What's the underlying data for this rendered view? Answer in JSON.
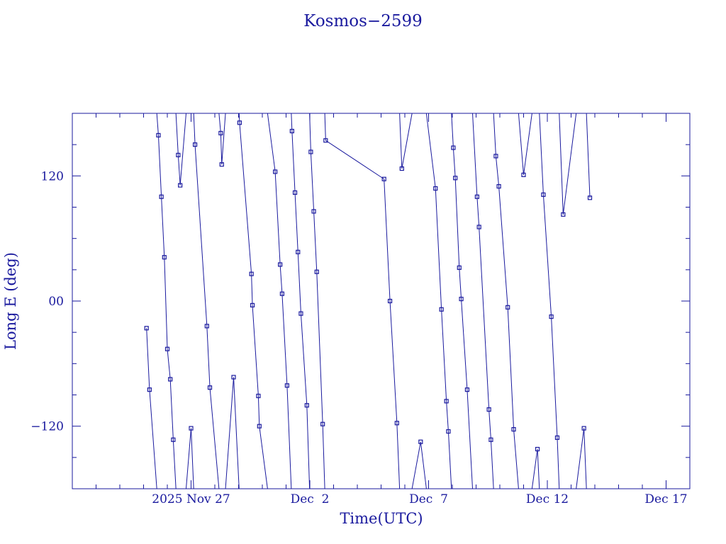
{
  "chart_data": {
    "type": "line",
    "title": "Kosmos−2599",
    "xlabel": "Time(UTC)",
    "ylabel": "Long E (deg)",
    "xlim": [
      "2025-11-22T00:00",
      "2025-12-18T00:00"
    ],
    "ylim": [
      -180,
      180
    ],
    "x_ticks": [
      {
        "x": "2025-11-27T00:00",
        "label": "2025 Nov 27"
      },
      {
        "x": "2025-12-02T00:00",
        "label": "Dec  2"
      },
      {
        "x": "2025-12-07T00:00",
        "label": "Dec  7"
      },
      {
        "x": "2025-12-12T00:00",
        "label": "Dec 12"
      },
      {
        "x": "2025-12-17T00:00",
        "label": "Dec 17"
      }
    ],
    "y_ticks": [
      {
        "y": 120,
        "label": "120"
      },
      {
        "y": 0,
        "label": "00"
      },
      {
        "y": -120,
        "label": "−120"
      }
    ],
    "grid": false,
    "color": "#1a1a9e",
    "series": [
      {
        "points": [
          [
            "2025-11-25T03:00",
            -26
          ],
          [
            "2025-11-25T06:00",
            -85
          ],
          [
            "2025-11-25T15:00",
            159
          ],
          [
            "2025-11-25T18:00",
            100
          ],
          [
            "2025-11-25T21:00",
            42
          ],
          [
            "2025-11-26T00:00",
            -46
          ],
          [
            "2025-11-26T03:00",
            -75
          ],
          [
            "2025-11-26T06:00",
            -133
          ],
          [
            "2025-11-26T11:00",
            140
          ],
          [
            "2025-11-26T13:00",
            111
          ],
          [
            "2025-11-27T00:00",
            -122
          ],
          [
            "2025-11-27T04:00",
            150
          ],
          [
            "2025-11-27T16:00",
            -24
          ],
          [
            "2025-11-27T19:00",
            -83
          ],
          [
            "2025-11-28T06:00",
            161
          ],
          [
            "2025-11-28T07:00",
            131
          ],
          [
            "2025-11-28T19:00",
            -73
          ],
          [
            "2025-11-29T01:00",
            171
          ],
          [
            "2025-11-29T13:00",
            26
          ],
          [
            "2025-11-29T14:00",
            -4
          ],
          [
            "2025-11-29T20:00",
            -91
          ],
          [
            "2025-11-29T21:00",
            -120
          ],
          [
            "2025-11-30T13:00",
            124
          ],
          [
            "2025-11-30T18:00",
            35
          ],
          [
            "2025-11-30T20:00",
            7
          ],
          [
            "2025-12-01T01:00",
            -81
          ],
          [
            "2025-12-01T06:00",
            163
          ],
          [
            "2025-12-01T09:00",
            104
          ],
          [
            "2025-12-01T12:00",
            47
          ],
          [
            "2025-12-01T15:00",
            -12
          ],
          [
            "2025-12-01T21:00",
            -100
          ],
          [
            "2025-12-02T01:00",
            143
          ],
          [
            "2025-12-02T04:00",
            86
          ],
          [
            "2025-12-02T07:00",
            28
          ],
          [
            "2025-12-02T13:00",
            -118
          ],
          [
            "2025-12-02T16:00",
            154
          ],
          [
            "2025-12-05T03:00",
            117
          ],
          [
            "2025-12-05T09:00",
            0
          ],
          [
            "2025-12-05T16:00",
            -117
          ],
          [
            "2025-12-05T21:00",
            127
          ],
          [
            "2025-12-06T16:00",
            -135
          ],
          [
            "2025-12-07T07:00",
            108
          ],
          [
            "2025-12-07T13:00",
            -8
          ],
          [
            "2025-12-07T18:00",
            -96
          ],
          [
            "2025-12-07T20:00",
            -125
          ],
          [
            "2025-12-08T01:00",
            147
          ],
          [
            "2025-12-08T03:00",
            118
          ],
          [
            "2025-12-08T07:00",
            32
          ],
          [
            "2025-12-08T09:00",
            2
          ],
          [
            "2025-12-08T15:00",
            -85
          ],
          [
            "2025-12-09T01:00",
            100
          ],
          [
            "2025-12-09T03:00",
            71
          ],
          [
            "2025-12-09T13:00",
            -104
          ],
          [
            "2025-12-09T15:00",
            -133
          ],
          [
            "2025-12-09T20:00",
            139
          ],
          [
            "2025-12-09T23:00",
            110
          ],
          [
            "2025-12-10T08:00",
            -6
          ],
          [
            "2025-12-10T14:00",
            -123
          ],
          [
            "2025-12-11T00:00",
            121
          ],
          [
            "2025-12-11T14:00",
            -142
          ],
          [
            "2025-12-11T20:00",
            102
          ],
          [
            "2025-12-12T04:00",
            -15
          ],
          [
            "2025-12-12T10:00",
            -131
          ],
          [
            "2025-12-12T16:00",
            83
          ],
          [
            "2025-12-13T13:00",
            -122
          ],
          [
            "2025-12-13T19:00",
            99
          ]
        ]
      }
    ]
  }
}
